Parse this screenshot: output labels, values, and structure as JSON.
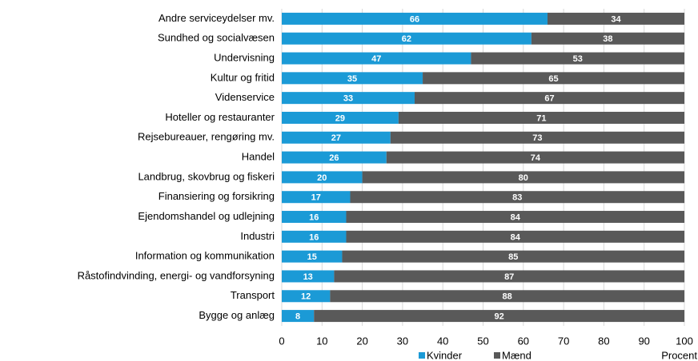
{
  "chart_data": {
    "type": "stacked_barh",
    "categories": [
      "Andre serviceydelser mv.",
      "Sundhed og socialvæsen",
      "Undervisning",
      "Kultur og fritid",
      "Videnservice",
      "Hoteller og restauranter",
      "Rejsebureauer, rengøring mv.",
      "Handel",
      "Landbrug, skovbrug og fiskeri",
      "Finansiering og forsikring",
      "Ejendomshandel og udlejning",
      "Industri",
      "Information og kommunikation",
      "Råstofindvinding, energi- og vandforsyning",
      "Transport",
      "Bygge og anlæg"
    ],
    "series": [
      {
        "name": "Kvinder",
        "color": "#1b9ad6",
        "values": [
          66,
          62,
          47,
          35,
          33,
          29,
          27,
          26,
          20,
          17,
          16,
          16,
          15,
          13,
          12,
          8
        ]
      },
      {
        "name": "Mænd",
        "color": "#595959",
        "values": [
          34,
          38,
          53,
          65,
          67,
          71,
          73,
          74,
          80,
          83,
          84,
          84,
          85,
          87,
          88,
          92
        ]
      }
    ],
    "xlabel": "Procent",
    "xlim": [
      0,
      100
    ],
    "xticks": [
      0,
      10,
      20,
      30,
      40,
      50,
      60,
      70,
      80,
      90,
      100
    ],
    "grid": true,
    "legend": "bottom"
  }
}
